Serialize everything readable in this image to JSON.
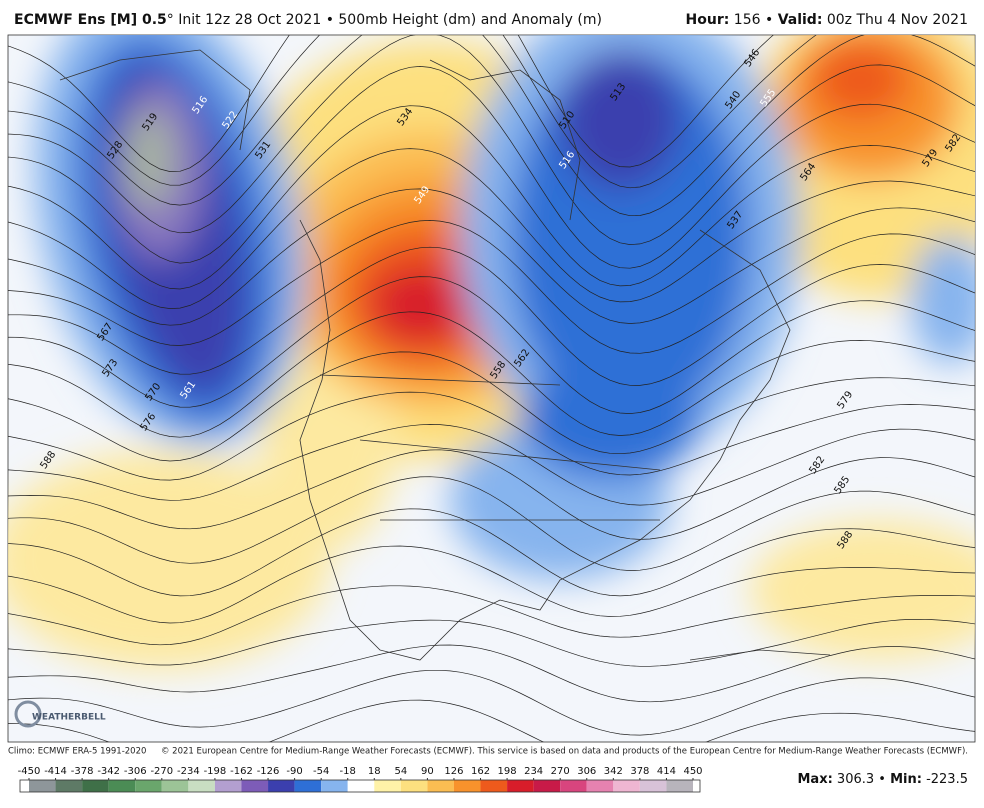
{
  "header": {
    "model": "ECMWF Ens [M] 0.5",
    "title_rest": "° Init 12z 28 Oct 2021 • 500mb Height (dm) and Anomaly (m)",
    "hour_label": "Hour:",
    "hour_value": " 156 • ",
    "valid_label": "Valid:",
    "valid_value": " 00z Thu 4 Nov 2021"
  },
  "logo": "WEATHERBELL",
  "contour_labels": [
    "516",
    "519",
    "528",
    "522",
    "531",
    "534",
    "549",
    "567",
    "573",
    "570",
    "561",
    "576",
    "588",
    "558",
    "562",
    "510",
    "513",
    "516",
    "537",
    "540",
    "546",
    "555",
    "564",
    "579",
    "582",
    "579",
    "582",
    "585",
    "588"
  ],
  "footer": {
    "climo": "Climo: ECMWF ERA-5 1991-2020",
    "copyright": "© 2021 European Centre for Medium-Range Weather Forecasts (ECMWF). This service is based on data and products of the European Centre for Medium-Range Weather Forecasts (ECMWF)."
  },
  "colorbar": {
    "ticks": [
      -450,
      -414,
      -378,
      -342,
      -306,
      -270,
      -234,
      -198,
      -162,
      -126,
      -90,
      -54,
      -18,
      18,
      54,
      90,
      126,
      162,
      198,
      234,
      270,
      306,
      342,
      378,
      414,
      450
    ],
    "colors": [
      "#8e969a",
      "#5e7a66",
      "#3f7048",
      "#4b8c55",
      "#6aa66c",
      "#9cc497",
      "#c9dec2",
      "#b39fd0",
      "#7d5cb8",
      "#3b3fae",
      "#2e6fd6",
      "#86b4ee",
      "#ffffff",
      "#fff2a8",
      "#fde07f",
      "#fbbd52",
      "#f8922c",
      "#ee5a1c",
      "#d81d2a",
      "#c81a48",
      "#d8457e",
      "#e682b0",
      "#efb6d2",
      "#d8c2d8",
      "#b8b4bc"
    ]
  },
  "stats": {
    "max_label": "Max:",
    "max": 306.3,
    "separator": " • ",
    "min_label": "Min:",
    "min": -223.5
  }
}
